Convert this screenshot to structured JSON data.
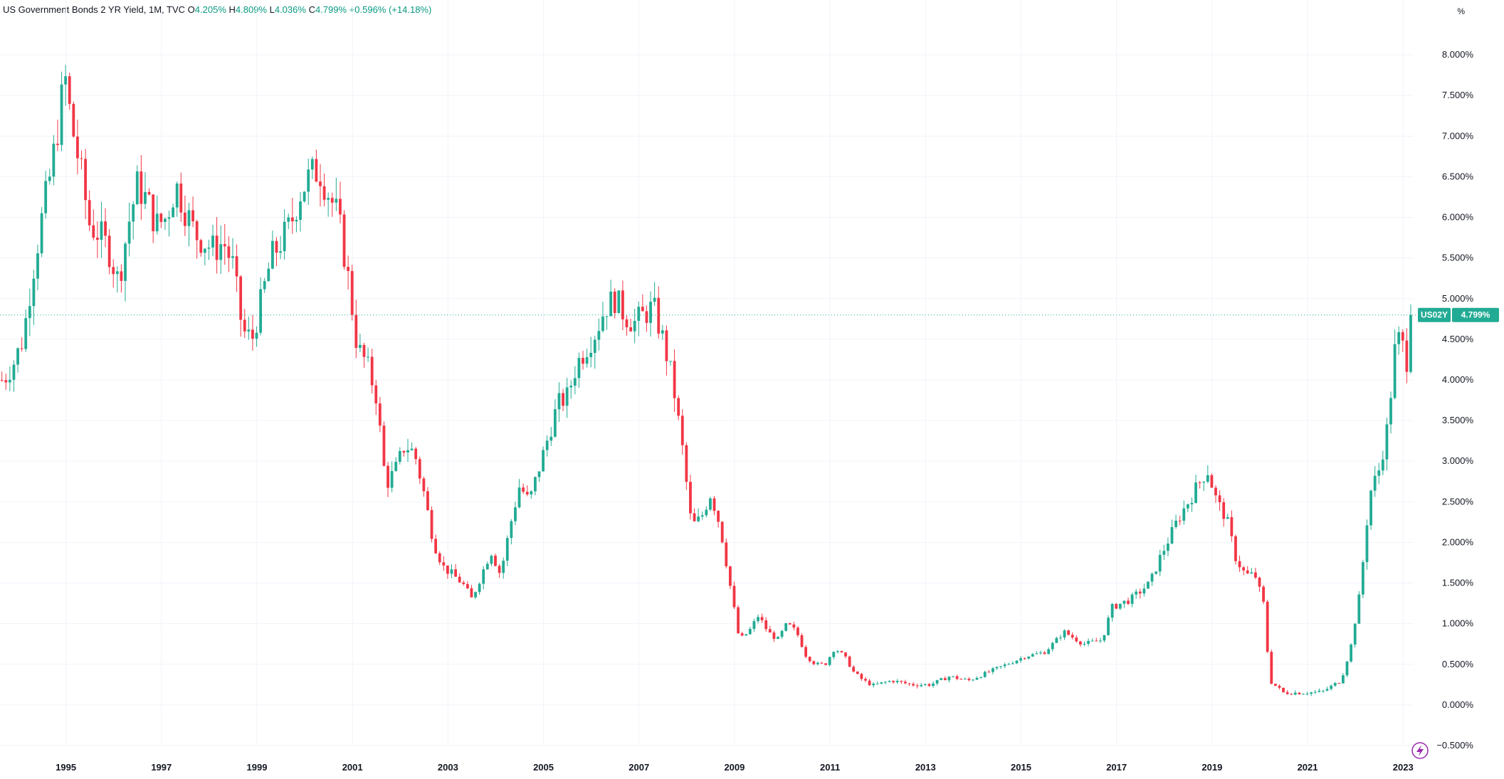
{
  "header": {
    "title": "US Government Bonds 2 YR Yield, 1M, TVC",
    "open_label": "O",
    "open": "4.205%",
    "high_label": "H",
    "high": "4.809%",
    "low_label": "L",
    "low": "4.036%",
    "close_label": "C",
    "close": "4.799%",
    "change": "+0.596% (+14.18%)"
  },
  "colors": {
    "up": "#22ab94",
    "down": "#f23645",
    "grid": "#f0f3fa",
    "tag": "#22ab94"
  },
  "price_tag": {
    "symbol": "US02Y",
    "value": "4.799%"
  },
  "chart_data": {
    "type": "candlestick",
    "title": "US Government Bonds 2 YR Yield, 1M, TVC",
    "y_unit": "%",
    "ylim": [
      -0.5,
      8.5
    ],
    "y_ticks": [
      "8.000%",
      "7.500%",
      "7.000%",
      "6.500%",
      "6.000%",
      "5.500%",
      "5.000%",
      "4.500%",
      "4.000%",
      "3.500%",
      "3.000%",
      "2.500%",
      "2.000%",
      "1.500%",
      "1.000%",
      "0.500%",
      "0.000%",
      "−0.500%"
    ],
    "y_tick_values": [
      8,
      7.5,
      7,
      6.5,
      6,
      5.5,
      5,
      4.5,
      4,
      3.5,
      3,
      2.5,
      2,
      1.5,
      1,
      0.5,
      0,
      -0.5
    ],
    "x_ticks": [
      "1995",
      "1997",
      "1999",
      "2001",
      "2003",
      "2005",
      "2007",
      "2009",
      "2011",
      "2013",
      "2015",
      "2017",
      "2019",
      "2021",
      "2023"
    ],
    "x_tick_values": [
      1995,
      1997,
      1999,
      2001,
      2003,
      2005,
      2007,
      2009,
      2011,
      2013,
      2015,
      2017,
      2019,
      2021,
      2023
    ],
    "xlim": [
      1993.62,
      2023.22
    ],
    "last_close": 4.799,
    "grid": true,
    "monthly_close_points": [
      [
        1993.7,
        4.0
      ],
      [
        1993.9,
        4.2
      ],
      [
        1994.1,
        4.5
      ],
      [
        1994.3,
        5.3
      ],
      [
        1994.5,
        6.0
      ],
      [
        1994.7,
        6.6
      ],
      [
        1994.9,
        7.4
      ],
      [
        1995.0,
        7.7
      ],
      [
        1995.1,
        7.2
      ],
      [
        1995.3,
        6.6
      ],
      [
        1995.5,
        5.9
      ],
      [
        1995.7,
        5.8
      ],
      [
        1995.9,
        5.6
      ],
      [
        1996.1,
        5.2
      ],
      [
        1996.3,
        5.9
      ],
      [
        1996.5,
        6.4
      ],
      [
        1996.7,
        6.2
      ],
      [
        1996.9,
        5.9
      ],
      [
        1997.1,
        6.0
      ],
      [
        1997.3,
        6.4
      ],
      [
        1997.5,
        6.1
      ],
      [
        1997.7,
        5.8
      ],
      [
        1997.9,
        5.7
      ],
      [
        1998.1,
        5.6
      ],
      [
        1998.3,
        5.7
      ],
      [
        1998.5,
        5.4
      ],
      [
        1998.7,
        4.6
      ],
      [
        1998.9,
        4.5
      ],
      [
        1999.1,
        5.0
      ],
      [
        1999.3,
        5.5
      ],
      [
        1999.5,
        5.7
      ],
      [
        1999.7,
        5.9
      ],
      [
        1999.9,
        6.3
      ],
      [
        2000.1,
        6.5
      ],
      [
        2000.3,
        6.6
      ],
      [
        2000.5,
        6.3
      ],
      [
        2000.7,
        6.0
      ],
      [
        2000.9,
        5.3
      ],
      [
        2001.1,
        4.4
      ],
      [
        2001.3,
        4.2
      ],
      [
        2001.5,
        3.8
      ],
      [
        2001.7,
        2.7
      ],
      [
        2001.9,
        2.9
      ],
      [
        2002.1,
        3.2
      ],
      [
        2002.3,
        3.1
      ],
      [
        2002.5,
        2.6
      ],
      [
        2002.7,
        2.0
      ],
      [
        2002.9,
        1.7
      ],
      [
        2003.1,
        1.6
      ],
      [
        2003.3,
        1.5
      ],
      [
        2003.5,
        1.3
      ],
      [
        2003.7,
        1.6
      ],
      [
        2003.9,
        1.9
      ],
      [
        2004.1,
        1.6
      ],
      [
        2004.3,
        2.2
      ],
      [
        2004.5,
        2.7
      ],
      [
        2004.7,
        2.5
      ],
      [
        2004.9,
        2.9
      ],
      [
        2005.1,
        3.3
      ],
      [
        2005.3,
        3.7
      ],
      [
        2005.5,
        3.8
      ],
      [
        2005.7,
        4.2
      ],
      [
        2005.9,
        4.4
      ],
      [
        2006.1,
        4.6
      ],
      [
        2006.3,
        4.9
      ],
      [
        2006.5,
        5.0
      ],
      [
        2006.7,
        4.8
      ],
      [
        2006.9,
        4.7
      ],
      [
        2007.1,
        4.8
      ],
      [
        2007.3,
        4.9
      ],
      [
        2007.5,
        4.5
      ],
      [
        2007.7,
        4.0
      ],
      [
        2007.9,
        3.2
      ],
      [
        2008.1,
        2.2
      ],
      [
        2008.3,
        2.3
      ],
      [
        2008.5,
        2.6
      ],
      [
        2008.7,
        2.2
      ],
      [
        2008.9,
        1.5
      ],
      [
        2009.1,
        0.8
      ],
      [
        2009.3,
        0.9
      ],
      [
        2009.5,
        1.1
      ],
      [
        2009.7,
        0.9
      ],
      [
        2009.9,
        0.8
      ],
      [
        2010.1,
        1.0
      ],
      [
        2010.3,
        0.9
      ],
      [
        2010.5,
        0.6
      ],
      [
        2010.7,
        0.5
      ],
      [
        2010.9,
        0.5
      ],
      [
        2011.1,
        0.7
      ],
      [
        2011.3,
        0.6
      ],
      [
        2011.5,
        0.4
      ],
      [
        2011.7,
        0.3
      ],
      [
        2011.9,
        0.24
      ],
      [
        2012.3,
        0.3
      ],
      [
        2012.7,
        0.25
      ],
      [
        2013.1,
        0.25
      ],
      [
        2013.5,
        0.35
      ],
      [
        2013.9,
        0.3
      ],
      [
        2014.3,
        0.4
      ],
      [
        2014.7,
        0.5
      ],
      [
        2015.1,
        0.6
      ],
      [
        2015.5,
        0.65
      ],
      [
        2015.9,
        0.9
      ],
      [
        2016.3,
        0.75
      ],
      [
        2016.7,
        0.8
      ],
      [
        2016.9,
        1.2
      ],
      [
        2017.3,
        1.3
      ],
      [
        2017.7,
        1.5
      ],
      [
        2017.9,
        1.8
      ],
      [
        2018.3,
        2.3
      ],
      [
        2018.7,
        2.7
      ],
      [
        2018.9,
        2.9
      ],
      [
        2019.1,
        2.5
      ],
      [
        2019.3,
        2.3
      ],
      [
        2019.5,
        1.8
      ],
      [
        2019.7,
        1.6
      ],
      [
        2019.9,
        1.6
      ],
      [
        2020.1,
        1.2
      ],
      [
        2020.2,
        0.3
      ],
      [
        2020.5,
        0.15
      ],
      [
        2020.9,
        0.15
      ],
      [
        2021.3,
        0.16
      ],
      [
        2021.7,
        0.3
      ],
      [
        2021.9,
        0.7
      ],
      [
        2022.1,
        1.4
      ],
      [
        2022.3,
        2.6
      ],
      [
        2022.5,
        2.9
      ],
      [
        2022.7,
        3.5
      ],
      [
        2022.8,
        4.3
      ],
      [
        2022.9,
        4.5
      ],
      [
        2023.0,
        4.4
      ],
      [
        2023.1,
        4.2
      ],
      [
        2023.2,
        4.8
      ]
    ]
  }
}
